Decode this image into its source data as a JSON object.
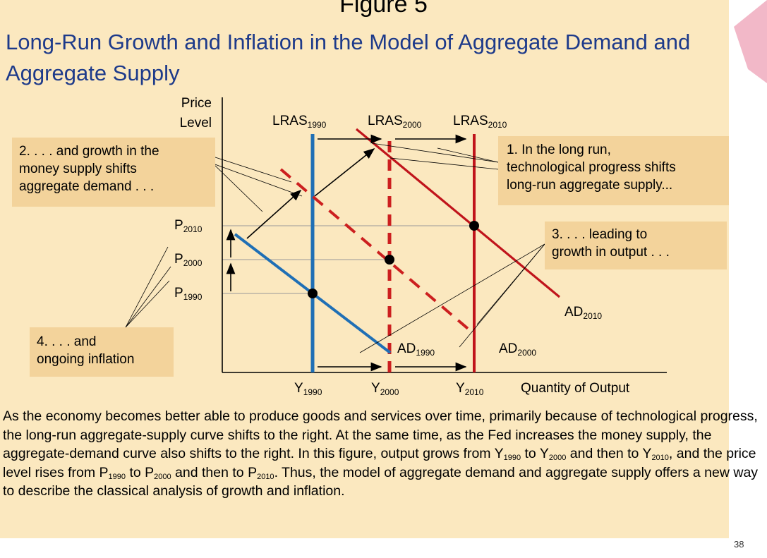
{
  "figure_label": "Figure 5",
  "title": "Long-Run Growth and Inflation in the Model of Aggregate Demand and Aggregate Supply",
  "chart_data": {
    "type": "line",
    "title": "Long-Run Growth and Inflation in the Model of Aggregate Demand and Aggregate Supply",
    "xlabel": "Quantity of Output",
    "ylabel": "Price Level",
    "y_axis_label": {
      "line1": "Price",
      "line2": "Level"
    },
    "grid": false,
    "years": [
      "1990",
      "2000",
      "2010"
    ],
    "output_levels": [
      {
        "label": "Y",
        "year": "1990"
      },
      {
        "label": "Y",
        "year": "2000"
      },
      {
        "label": "Y",
        "year": "2010"
      }
    ],
    "price_levels": [
      {
        "label": "P",
        "year": "1990"
      },
      {
        "label": "P",
        "year": "2000"
      },
      {
        "label": "P",
        "year": "2010"
      }
    ],
    "lras": [
      {
        "label": "LRAS",
        "year": "1990",
        "style": "solid",
        "color": "#1f6fb5",
        "output_index": 0
      },
      {
        "label": "LRAS",
        "year": "2000",
        "style": "dashed",
        "color": "#cc1f1f",
        "output_index": 1
      },
      {
        "label": "LRAS",
        "year": "2010",
        "style": "solid",
        "color": "#c0141b",
        "output_index": 2
      }
    ],
    "ad": [
      {
        "label": "AD",
        "year": "1990",
        "style": "solid",
        "color": "#1f6fb5"
      },
      {
        "label": "AD",
        "year": "2000",
        "style": "dashed",
        "color": "#cc1f1f"
      },
      {
        "label": "AD",
        "year": "2010",
        "style": "solid",
        "color": "#c0141b"
      }
    ],
    "equilibria": [
      {
        "output_index": 0,
        "price_index": 0
      },
      {
        "output_index": 1,
        "price_index": 1
      },
      {
        "output_index": 2,
        "price_index": 2
      }
    ]
  },
  "callouts": [
    {
      "id": "1",
      "lines": [
        "1. In the long run,",
        "technological progress shifts",
        "long-run aggregate supply..."
      ]
    },
    {
      "id": "2",
      "lines": [
        "2. . . . and growth in the",
        "money supply shifts",
        "aggregate demand . . ."
      ]
    },
    {
      "id": "3",
      "lines": [
        "3. . . . leading to",
        "growth in output . . ."
      ]
    },
    {
      "id": "4",
      "lines": [
        "4. . . . and",
        "ongoing inflation"
      ]
    }
  ],
  "caption": {
    "part1": "As the economy becomes better able to produce goods and services over time, primarily because of technological progress, the long-run aggregate-supply curve shifts to the right. At the same time, as the Fed increases the money supply, the aggregate-demand curve also shifts to the right. In this figure, output grows from ",
    "y": "Y",
    "y1990": "1990",
    "to1": " to ",
    "y2000": "2000",
    "and1": " and then to ",
    "y2010": "2010",
    "part2": ", and the price level rises from ",
    "p": "P",
    "p1990": "1990",
    "to2": " to ",
    "p2000": "2000",
    "and2": " and then to ",
    "p2010": "2010",
    "part3": ". Thus, the model of aggregate demand and aggregate supply offers a new way to describe the classical analysis of growth and inflation."
  },
  "page_number": "38",
  "colors": {
    "background": "#fbe8bf",
    "callout": "#f3d39b",
    "title": "#1d3a8a",
    "blue": "#1f6fb5",
    "red": "#c0141b",
    "accent_pink": "#f2b8c8"
  }
}
